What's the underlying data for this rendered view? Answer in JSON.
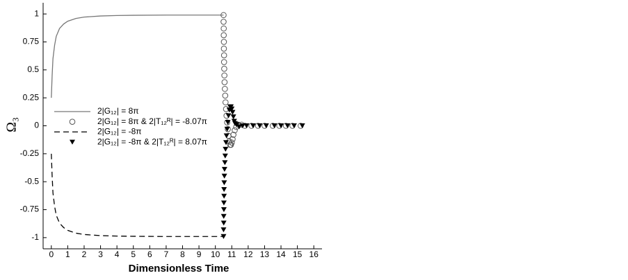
{
  "chart_data": {
    "type": "line",
    "x_label": "Dimensionless Time",
    "y_label": "Ω₃",
    "xlim": [
      -0.5,
      16.5
    ],
    "ylim": [
      -1.1,
      1.1
    ],
    "xticks": [
      0,
      1,
      2,
      3,
      4,
      5,
      6,
      7,
      8,
      9,
      10,
      11,
      12,
      13,
      14,
      15,
      16
    ],
    "yticks": [
      1,
      0.75,
      0.5,
      0.25,
      0,
      -0.25,
      -0.5,
      -0.75,
      -1
    ],
    "legend": "left",
    "series": [
      {
        "name": "2|G₁₂| =  8π",
        "color": "#777777",
        "line_style": "solid",
        "x": [
          0,
          0.05,
          0.1,
          0.2,
          0.3,
          0.5,
          0.75,
          1,
          1.5,
          2,
          3,
          4,
          5,
          7,
          10.5
        ],
        "values": [
          0.25,
          0.45,
          0.6,
          0.72,
          0.8,
          0.87,
          0.91,
          0.935,
          0.96,
          0.972,
          0.982,
          0.986,
          0.988,
          0.99,
          0.99
        ]
      },
      {
        "name": "2|G₁₂| =  8π & 2|T₁₂ᴿ| = -8.07π",
        "color": "#555555",
        "marker": "circle",
        "x": [
          10.5,
          10.5,
          10.51,
          10.51,
          10.52,
          10.52,
          10.53,
          10.53,
          10.54,
          10.55,
          10.56,
          10.58,
          10.6,
          10.62,
          10.65,
          10.68,
          10.72,
          10.76,
          10.8,
          10.85,
          10.9,
          10.95,
          11.0,
          11.05,
          11.1,
          11.18,
          11.27,
          11.4,
          11.6,
          11.8,
          12.2,
          12.6,
          13.0,
          13.5,
          13.9,
          14.3,
          14.7,
          15.2
        ],
        "values": [
          0.99,
          0.93,
          0.87,
          0.81,
          0.75,
          0.69,
          0.63,
          0.57,
          0.51,
          0.45,
          0.39,
          0.33,
          0.27,
          0.21,
          0.15,
          0.09,
          0.03,
          -0.03,
          -0.09,
          -0.14,
          -0.17,
          -0.17,
          -0.15,
          -0.12,
          -0.08,
          -0.04,
          -0.01,
          0.01,
          0.01,
          0,
          0,
          0,
          0,
          0,
          0,
          0,
          0,
          0
        ]
      },
      {
        "name": "2|G₁₂| = -8π",
        "color": "#000000",
        "line_style": "dashed",
        "x": [
          0,
          0.05,
          0.1,
          0.2,
          0.3,
          0.5,
          0.75,
          1,
          1.5,
          2,
          3,
          4,
          5,
          7,
          10.5
        ],
        "values": [
          -0.25,
          -0.45,
          -0.6,
          -0.72,
          -0.8,
          -0.87,
          -0.91,
          -0.935,
          -0.96,
          -0.972,
          -0.982,
          -0.986,
          -0.988,
          -0.99,
          -0.99
        ]
      },
      {
        "name": "2|G₁₂| = -8π & 2|T₁₂ᴿ| =  8.07π",
        "color": "#000000",
        "marker": "triangle-down",
        "x": [
          10.5,
          10.5,
          10.51,
          10.51,
          10.52,
          10.52,
          10.53,
          10.53,
          10.54,
          10.55,
          10.56,
          10.58,
          10.6,
          10.62,
          10.65,
          10.68,
          10.72,
          10.76,
          10.8,
          10.85,
          10.9,
          10.95,
          11.0,
          11.05,
          11.1,
          11.15,
          11.2,
          11.3,
          11.45,
          11.65,
          11.9,
          12.3,
          12.7,
          13.1,
          13.6,
          14.0,
          14.4,
          14.8,
          15.3
        ],
        "values": [
          -0.99,
          -0.93,
          -0.87,
          -0.81,
          -0.75,
          -0.69,
          -0.63,
          -0.57,
          -0.51,
          -0.45,
          -0.39,
          -0.33,
          -0.27,
          -0.21,
          -0.15,
          -0.09,
          -0.03,
          0.03,
          0.09,
          0.14,
          0.17,
          0.17,
          0.15,
          0.12,
          0.08,
          0.04,
          0.02,
          0.01,
          -0.01,
          0,
          0,
          0,
          0,
          0,
          0,
          0,
          0,
          0,
          0
        ]
      }
    ]
  }
}
